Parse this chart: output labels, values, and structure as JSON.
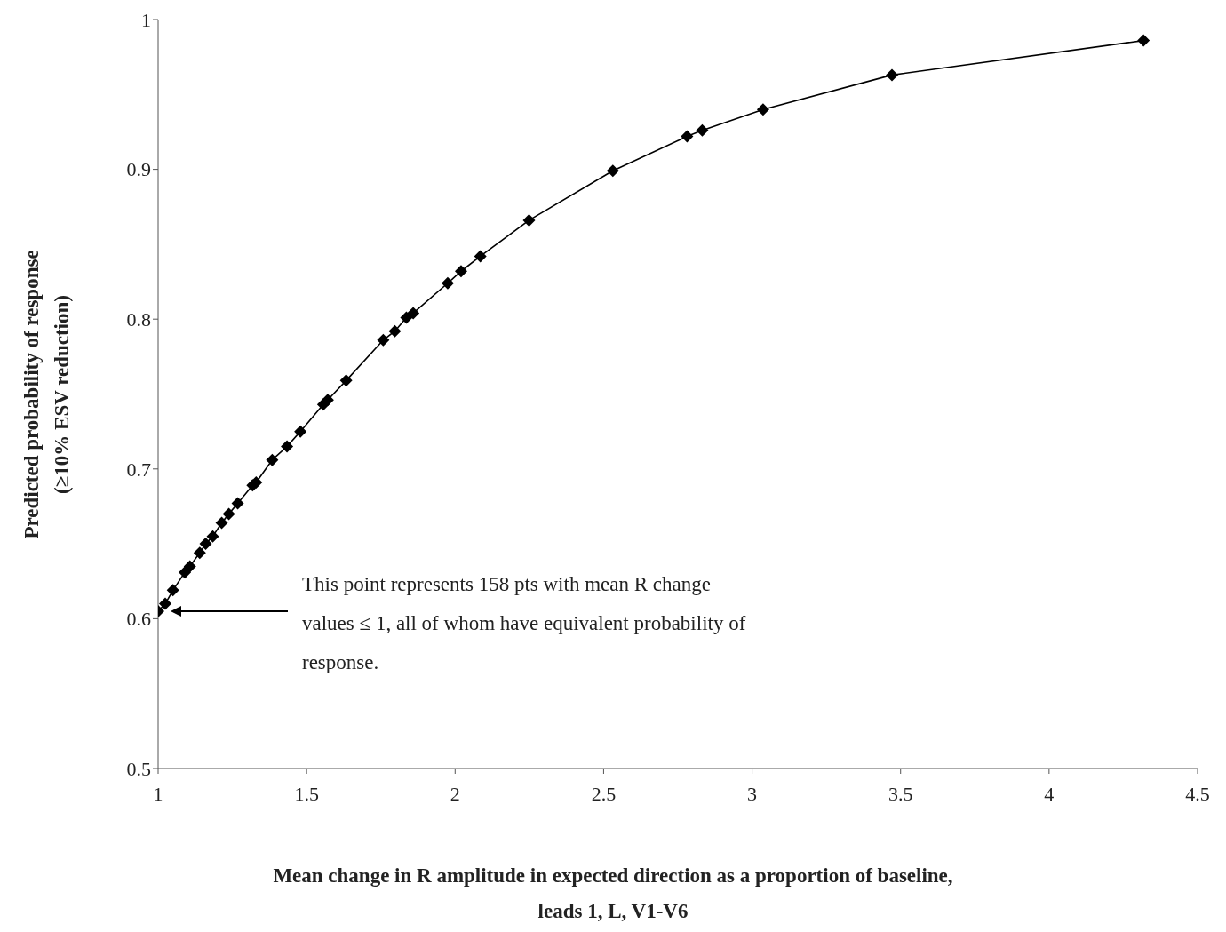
{
  "chart_data": {
    "type": "line",
    "xlabel": "Mean change in R amplitude in expected direction as a proportion of baseline,\nleads 1, L, V1-V6",
    "ylabel": "Predicted probability of response\n(≥10% ESV reduction)",
    "x": [
      1.0,
      1.024,
      1.05,
      1.09,
      1.107,
      1.14,
      1.16,
      1.184,
      1.214,
      1.238,
      1.268,
      1.318,
      1.33,
      1.384,
      1.434,
      1.479,
      1.556,
      1.571,
      1.633,
      1.758,
      1.797,
      1.836,
      1.859,
      1.975,
      2.02,
      2.085,
      2.249,
      2.531,
      2.781,
      2.832,
      3.037,
      3.471,
      4.318
    ],
    "series": [
      {
        "color": "#000000",
        "values": [
          0.605,
          0.61,
          0.619,
          0.631,
          0.635,
          0.644,
          0.65,
          0.655,
          0.664,
          0.67,
          0.677,
          0.689,
          0.691,
          0.706,
          0.715,
          0.725,
          0.743,
          0.746,
          0.759,
          0.786,
          0.792,
          0.801,
          0.804,
          0.824,
          0.832,
          0.842,
          0.866,
          0.899,
          0.922,
          0.926,
          0.94,
          0.963,
          0.986
        ]
      }
    ],
    "xlim": [
      1,
      4.5
    ],
    "xticks": [
      1,
      1.5,
      2,
      2.5,
      3,
      3.5,
      4,
      4.5
    ],
    "ylim": [
      0.5,
      1
    ],
    "yticks": [
      0.5,
      0.6,
      0.7,
      0.8,
      0.9,
      1
    ],
    "marker": "diamond",
    "line_style": "solid",
    "grid": false,
    "legend": false,
    "annotations": [
      "This point represents 158 pts with mean R change values ≤ 1, all of whom have equivalent probability of response."
    ]
  }
}
